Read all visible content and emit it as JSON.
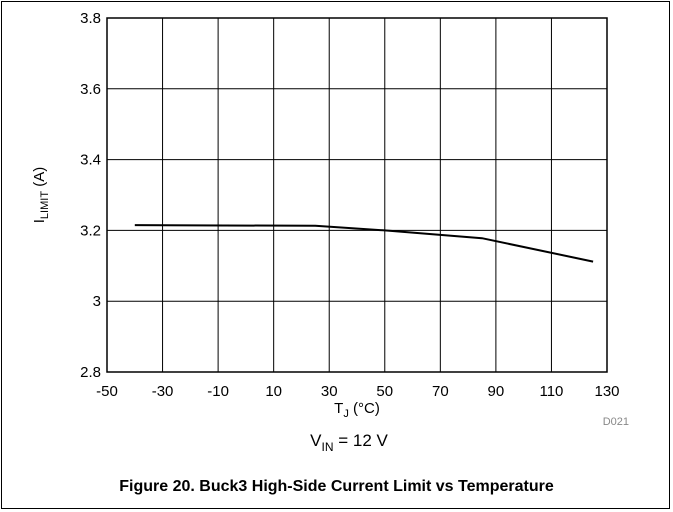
{
  "chart_data": {
    "type": "line",
    "title": "",
    "xlabel": {
      "main": "T",
      "sub": "J",
      "rest": " (°C)"
    },
    "ylabel": {
      "main": "I",
      "sub": "LIMIT",
      "rest": " (A)"
    },
    "xlim": [
      -50,
      130
    ],
    "ylim": [
      2.8,
      3.8
    ],
    "xticks": [
      -50,
      -30,
      -10,
      10,
      30,
      50,
      70,
      90,
      110,
      130
    ],
    "yticks": [
      2.8,
      3,
      3.2,
      3.4,
      3.6,
      3.8
    ],
    "ytick_labels": [
      "2.8",
      "3",
      "3.2",
      "3.4",
      "3.6",
      "3.8"
    ],
    "grid": true,
    "series": [
      {
        "x": [
          -40,
          25,
          50,
          85,
          125
        ],
        "y": [
          3.215,
          3.213,
          3.2,
          3.178,
          3.112
        ]
      }
    ],
    "note": "D021",
    "condition": {
      "main": "V",
      "sub": "IN",
      "rest": " = 12 V"
    }
  },
  "caption": "Figure 20. Buck3 High-Side Current Limit vs Temperature"
}
